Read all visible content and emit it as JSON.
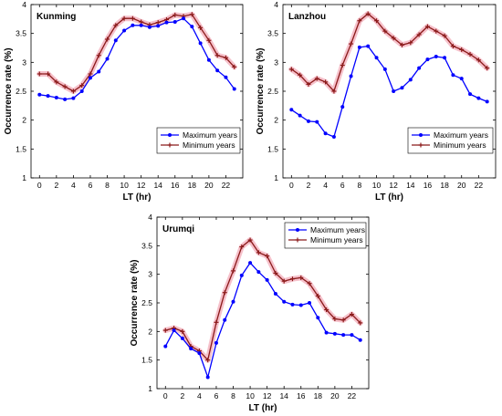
{
  "chart_data": [
    {
      "type": "line",
      "title": "Kunming",
      "xlabel": "LT (hr)",
      "ylabel": "Occurrence rate (%)",
      "xlim": [
        -1,
        24
      ],
      "ylim": [
        1,
        4
      ],
      "xticks": [
        "0",
        "2",
        "4",
        "6",
        "8",
        "10",
        "12",
        "14",
        "16",
        "18",
        "20",
        "22"
      ],
      "yticks": [
        "1",
        "1.5",
        "2",
        "2.5",
        "3",
        "3.5",
        "4"
      ],
      "legend_position": "bottom-right",
      "grid": false,
      "x": [
        0,
        1,
        2,
        3,
        4,
        5,
        6,
        7,
        8,
        9,
        10,
        11,
        12,
        13,
        14,
        15,
        16,
        17,
        18,
        19,
        20,
        21,
        22,
        23
      ],
      "series": [
        {
          "name": "Maximum years",
          "color": "#0000ff",
          "values": [
            2.44,
            2.42,
            2.39,
            2.36,
            2.38,
            2.5,
            2.73,
            2.84,
            3.06,
            3.38,
            3.55,
            3.64,
            3.64,
            3.61,
            3.63,
            3.69,
            3.7,
            3.76,
            3.62,
            3.33,
            3.04,
            2.86,
            2.74,
            2.54
          ]
        },
        {
          "name": "Minimum years",
          "color": "#8b1a1a",
          "values": [
            2.8,
            2.8,
            2.66,
            2.58,
            2.5,
            2.6,
            2.8,
            3.12,
            3.4,
            3.64,
            3.76,
            3.76,
            3.7,
            3.65,
            3.69,
            3.74,
            3.82,
            3.8,
            3.83,
            3.6,
            3.38,
            3.12,
            3.08,
            2.92
          ]
        }
      ]
    },
    {
      "type": "line",
      "title": "Lanzhou",
      "xlabel": "LT (hr)",
      "ylabel": "Occurrence rate (%)",
      "xlim": [
        -1,
        24
      ],
      "ylim": [
        1,
        4
      ],
      "xticks": [
        "0",
        "2",
        "4",
        "6",
        "8",
        "10",
        "12",
        "14",
        "16",
        "18",
        "20",
        "22"
      ],
      "yticks": [
        "1",
        "1.5",
        "2",
        "2.5",
        "3",
        "3.5",
        "4"
      ],
      "legend_position": "bottom-right",
      "grid": false,
      "x": [
        0,
        1,
        2,
        3,
        4,
        5,
        6,
        7,
        8,
        9,
        10,
        11,
        12,
        13,
        14,
        15,
        16,
        17,
        18,
        19,
        20,
        21,
        22,
        23
      ],
      "series": [
        {
          "name": "Maximum years",
          "color": "#0000ff",
          "values": [
            2.18,
            2.08,
            1.98,
            1.97,
            1.77,
            1.71,
            2.23,
            2.76,
            3.26,
            3.28,
            3.08,
            2.88,
            2.5,
            2.56,
            2.7,
            2.9,
            3.05,
            3.1,
            3.08,
            2.78,
            2.72,
            2.45,
            2.38,
            2.32
          ]
        },
        {
          "name": "Minimum years",
          "color": "#8b1a1a",
          "values": [
            2.88,
            2.78,
            2.62,
            2.72,
            2.66,
            2.5,
            2.95,
            3.32,
            3.72,
            3.84,
            3.72,
            3.54,
            3.42,
            3.3,
            3.34,
            3.48,
            3.62,
            3.54,
            3.46,
            3.28,
            3.22,
            3.14,
            3.04,
            2.9
          ]
        }
      ]
    },
    {
      "type": "line",
      "title": "Urumqi",
      "xlabel": "LT (hr)",
      "ylabel": "Occurrence rate (%)",
      "xlim": [
        -1,
        24
      ],
      "ylim": [
        1,
        4
      ],
      "xticks": [
        "0",
        "2",
        "4",
        "6",
        "8",
        "10",
        "12",
        "14",
        "16",
        "18",
        "20",
        "22"
      ],
      "yticks": [
        "1",
        "1.5",
        "2",
        "2.5",
        "3",
        "3.5",
        "4"
      ],
      "legend_position": "top-right",
      "grid": false,
      "x": [
        0,
        1,
        2,
        3,
        4,
        5,
        6,
        7,
        8,
        9,
        10,
        11,
        12,
        13,
        14,
        15,
        16,
        17,
        18,
        19,
        20,
        21,
        22,
        23
      ],
      "series": [
        {
          "name": "Maximum years",
          "color": "#0000ff",
          "values": [
            1.74,
            2.02,
            1.88,
            1.7,
            1.62,
            1.2,
            1.8,
            2.2,
            2.52,
            2.98,
            3.2,
            3.04,
            2.9,
            2.66,
            2.52,
            2.47,
            2.46,
            2.5,
            2.24,
            1.98,
            1.96,
            1.94,
            1.94,
            1.85
          ]
        },
        {
          "name": "Minimum years",
          "color": "#8b1a1a",
          "values": [
            2.02,
            2.06,
            2.0,
            1.74,
            1.66,
            1.5,
            2.16,
            2.68,
            3.06,
            3.48,
            3.6,
            3.38,
            3.32,
            3.02,
            2.88,
            2.92,
            2.94,
            2.84,
            2.62,
            2.38,
            2.22,
            2.2,
            2.3,
            2.15
          ]
        }
      ]
    }
  ]
}
